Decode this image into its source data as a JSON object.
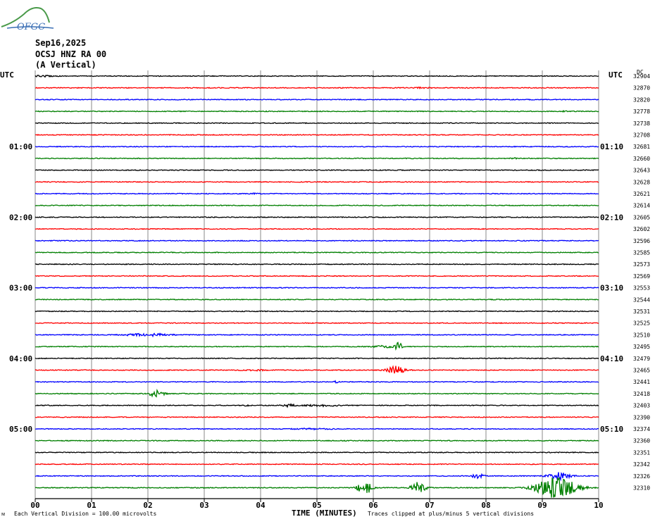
{
  "logo": {
    "text": "OFGC",
    "icon": "mountain-logo-icon",
    "color": "#2e7d32"
  },
  "header": {
    "date": "Sep16,2025",
    "station": "OCSJ HNZ RA 00",
    "component": "(A Vertical)"
  },
  "chart_data": {
    "type": "line",
    "xlabel": "TIME (MINUTES)",
    "x_ticks": [
      "00",
      "01",
      "02",
      "03",
      "04",
      "05",
      "06",
      "07",
      "08",
      "09",
      "10"
    ],
    "xlim": [
      0,
      10
    ],
    "left_tz": "UTC",
    "right_tz": "UTC",
    "dc_header": "DC",
    "left_times": [
      "01:00",
      "02:00",
      "03:00",
      "04:00",
      "05:00"
    ],
    "right_times": [
      "01:10",
      "02:10",
      "03:10",
      "04:10",
      "05:10"
    ],
    "trace_colors": [
      "#000000",
      "#ff0000",
      "#0000ff",
      "#007f00"
    ],
    "dc_values": [
      32904,
      32870,
      32820,
      32778,
      32738,
      32708,
      32681,
      32660,
      32643,
      32628,
      32621,
      32614,
      32605,
      32602,
      32596,
      32585,
      32573,
      32569,
      32553,
      32544,
      32531,
      32525,
      32510,
      32495,
      32479,
      32465,
      32441,
      32418,
      32403,
      32390,
      32374,
      32360,
      32351,
      32342,
      32326,
      32310
    ],
    "events": [
      {
        "trace": 0,
        "minute": 0.15,
        "amp": 0.25,
        "width": 0.15
      },
      {
        "trace": 1,
        "minute": 6.9,
        "amp": 0.2,
        "width": 0.15
      },
      {
        "trace": 3,
        "minute": 9.4,
        "amp": 0.2,
        "width": 0.05
      },
      {
        "trace": 7,
        "minute": 8.5,
        "amp": 0.25,
        "width": 0.05
      },
      {
        "trace": 10,
        "minute": 3.9,
        "amp": 0.25,
        "width": 0.03
      },
      {
        "trace": 22,
        "minute": 2.0,
        "amp": 0.5,
        "width": 0.4
      },
      {
        "trace": 23,
        "minute": 6.2,
        "amp": 0.4,
        "width": 0.2
      },
      {
        "trace": 23,
        "minute": 6.45,
        "amp": 2.5,
        "width": 0.05
      },
      {
        "trace": 25,
        "minute": 3.9,
        "amp": 0.25,
        "width": 0.2
      },
      {
        "trace": 25,
        "minute": 6.4,
        "amp": 1.7,
        "width": 0.15
      },
      {
        "trace": 26,
        "minute": 5.35,
        "amp": 0.4,
        "width": 0.04
      },
      {
        "trace": 27,
        "minute": 2.15,
        "amp": 1.5,
        "width": 0.12
      },
      {
        "trace": 28,
        "minute": 3.75,
        "amp": 0.3,
        "width": 0.05
      },
      {
        "trace": 28,
        "minute": 4.5,
        "amp": 0.6,
        "width": 0.1
      },
      {
        "trace": 28,
        "minute": 5.1,
        "amp": 0.35,
        "width": 0.3
      },
      {
        "trace": 30,
        "minute": 4.9,
        "amp": 0.2,
        "width": 0.3
      },
      {
        "trace": 34,
        "minute": 7.85,
        "amp": 1.0,
        "width": 0.1
      },
      {
        "trace": 34,
        "minute": 9.3,
        "amp": 1.5,
        "width": 0.2
      },
      {
        "trace": 35,
        "minute": 5.85,
        "amp": 3.0,
        "width": 0.12
      },
      {
        "trace": 35,
        "minute": 6.8,
        "amp": 2.6,
        "width": 0.12
      },
      {
        "trace": 35,
        "minute": 9.25,
        "amp": 4.5,
        "width": 0.35
      }
    ]
  },
  "footer": {
    "left": "Each Vertical Division =  100.00 microvolts",
    "right": "Traces clipped at plus/minus 5 vertical divisions",
    "corner": "ᴍ"
  }
}
